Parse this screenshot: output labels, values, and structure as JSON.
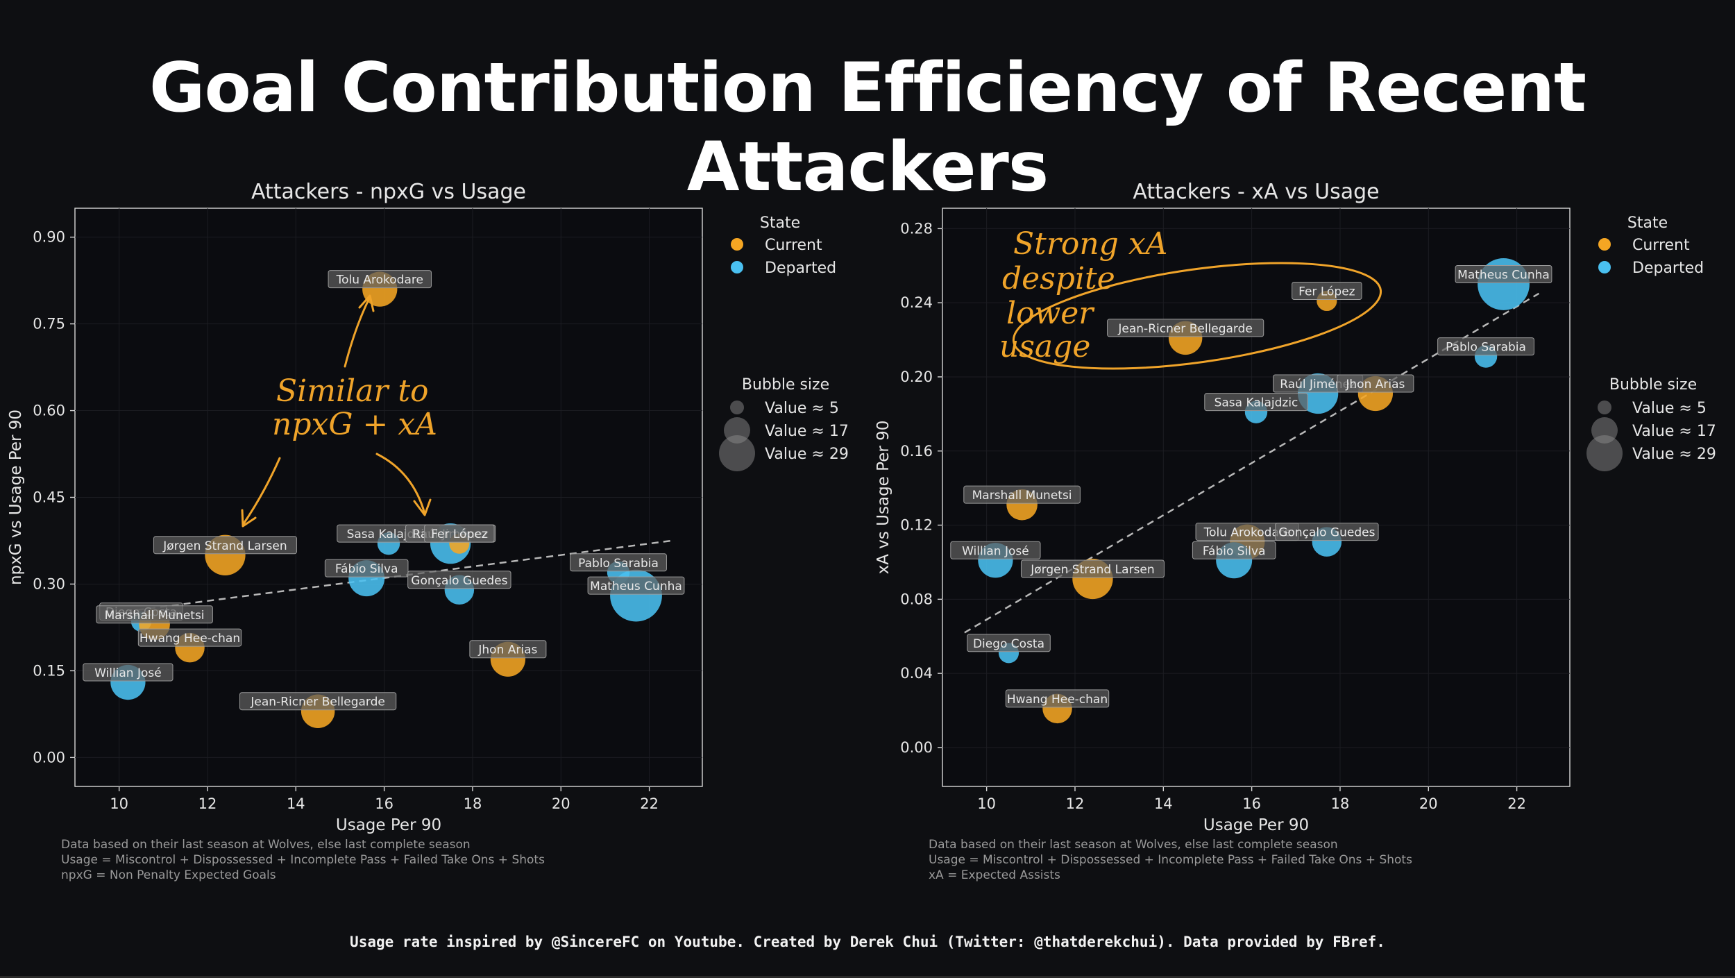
{
  "title": "Goal Contribution Efficiency of Recent Attackers",
  "footer": "Usage rate inspired by @SincereFC on Youtube. Created by Derek Chui (Twitter: @thatderekchui). Data provided by FBref.",
  "colors": {
    "current": "#f5a623",
    "departed": "#4ac0f0",
    "background": "#0e0f12",
    "annotation": "#f0a42a"
  },
  "legend": {
    "state_title": "State",
    "states": [
      {
        "key": "current",
        "label": "Current"
      },
      {
        "key": "departed",
        "label": "Departed"
      }
    ],
    "size_title": "Bubble size",
    "sizes": [
      {
        "value": 5,
        "label": "Value ≈ 5"
      },
      {
        "value": 17,
        "label": "Value ≈ 17"
      },
      {
        "value": 29,
        "label": "Value ≈ 29"
      }
    ]
  },
  "annotations": {
    "left": [
      "Similar to",
      "npxG + xA"
    ],
    "right": [
      "Strong xA",
      "despite",
      "lower",
      "usage"
    ]
  },
  "chart_data": [
    {
      "type": "scatter",
      "title": "Attackers - npxG vs Usage",
      "xlabel": "Usage Per 90",
      "ylabel": "npxG vs Usage Per 90",
      "xlim": [
        9,
        23.2
      ],
      "ylim": [
        -0.05,
        0.95
      ],
      "xticks": [
        "10",
        "12",
        "14",
        "16",
        "18",
        "20",
        "22"
      ],
      "yticks": [
        "0.00",
        "0.15",
        "0.30",
        "0.45",
        "0.60",
        "0.75",
        "0.90"
      ],
      "trendline": {
        "x": [
          10.4,
          22.5
        ],
        "y": [
          0.255,
          0.375
        ],
        "style": "dashed"
      },
      "notes": [
        "Data based on their last season at Wolves, else last complete season",
        "Usage = Miscontrol + Dispossessed + Incomplete Pass + Failed Take Ons + Shots",
        "npxG = Non Penalty Expected Goals"
      ],
      "points": [
        {
          "name": "Tolu Arokodare",
          "x": 15.9,
          "y": 0.81,
          "state": "current",
          "size": 12
        },
        {
          "name": "Jørgen Strand Larsen",
          "x": 12.4,
          "y": 0.35,
          "state": "current",
          "size": 17
        },
        {
          "name": "Sasa Kalajdzic",
          "x": 16.1,
          "y": 0.37,
          "state": "departed",
          "size": 4
        },
        {
          "name": "Raúl Jiménez",
          "x": 17.5,
          "y": 0.37,
          "state": "departed",
          "size": 17
        },
        {
          "name": "Fer López",
          "x": 17.7,
          "y": 0.37,
          "state": "current",
          "size": 3
        },
        {
          "name": "Fábio Silva",
          "x": 15.6,
          "y": 0.31,
          "state": "departed",
          "size": 13
        },
        {
          "name": "Gonçalo Guedes",
          "x": 17.7,
          "y": 0.29,
          "state": "departed",
          "size": 8
        },
        {
          "name": "Pablo Sarabia",
          "x": 21.3,
          "y": 0.32,
          "state": "departed",
          "size": 4
        },
        {
          "name": "Matheus Cunha",
          "x": 21.7,
          "y": 0.28,
          "state": "departed",
          "size": 30
        },
        {
          "name": "Diego Costa",
          "x": 10.5,
          "y": 0.235,
          "state": "departed",
          "size": 3
        },
        {
          "name": "Marshall Munetsi",
          "x": 10.8,
          "y": 0.23,
          "state": "current",
          "size": 9
        },
        {
          "name": "Hwang Hee-chan",
          "x": 11.6,
          "y": 0.19,
          "state": "current",
          "size": 8
        },
        {
          "name": "Willian José",
          "x": 10.2,
          "y": 0.13,
          "state": "departed",
          "size": 12
        },
        {
          "name": "Jhon Arias",
          "x": 18.8,
          "y": 0.17,
          "state": "current",
          "size": 12
        },
        {
          "name": "Jean-Ricner Bellegarde",
          "x": 14.5,
          "y": 0.08,
          "state": "current",
          "size": 11
        }
      ]
    },
    {
      "type": "scatter",
      "title": "Attackers - xA vs Usage",
      "xlabel": "Usage Per 90",
      "ylabel": "xA vs Usage Per 90",
      "xlim": [
        9,
        23.2
      ],
      "ylim": [
        -0.021,
        0.291
      ],
      "xticks": [
        "10",
        "12",
        "14",
        "16",
        "18",
        "20",
        "22"
      ],
      "yticks": [
        "0.00",
        "0.04",
        "0.08",
        "0.12",
        "0.16",
        "0.20",
        "0.24",
        "0.28"
      ],
      "trendline": {
        "x": [
          9.5,
          22.5
        ],
        "y": [
          0.062,
          0.245
        ],
        "style": "dashed"
      },
      "notes": [
        "Data based on their last season at Wolves, else last complete season",
        "Usage = Miscontrol + Dispossessed + Incomplete Pass + Failed Take Ons + Shots",
        "xA = Expected Assists"
      ],
      "points": [
        {
          "name": "Matheus Cunha",
          "x": 21.7,
          "y": 0.25,
          "state": "departed",
          "size": 30
        },
        {
          "name": "Fer López",
          "x": 17.7,
          "y": 0.241,
          "state": "current",
          "size": 3
        },
        {
          "name": "Jean-Ricner Bellegarde",
          "x": 14.5,
          "y": 0.221,
          "state": "current",
          "size": 11
        },
        {
          "name": "Pablo Sarabia",
          "x": 21.3,
          "y": 0.211,
          "state": "departed",
          "size": 4
        },
        {
          "name": "Raúl Jiménez",
          "x": 17.5,
          "y": 0.191,
          "state": "departed",
          "size": 17
        },
        {
          "name": "Jhon Arias",
          "x": 18.8,
          "y": 0.191,
          "state": "current",
          "size": 12
        },
        {
          "name": "Sasa Kalajdzic",
          "x": 16.1,
          "y": 0.181,
          "state": "departed",
          "size": 4
        },
        {
          "name": "Marshall Munetsi",
          "x": 10.8,
          "y": 0.131,
          "state": "current",
          "size": 9
        },
        {
          "name": "Tolu Arokodare",
          "x": 15.9,
          "y": 0.111,
          "state": "current",
          "size": 12
        },
        {
          "name": "Gonçalo Guedes",
          "x": 17.7,
          "y": 0.111,
          "state": "departed",
          "size": 8
        },
        {
          "name": "Willian José",
          "x": 10.2,
          "y": 0.101,
          "state": "departed",
          "size": 12
        },
        {
          "name": "Fábio Silva",
          "x": 15.6,
          "y": 0.101,
          "state": "departed",
          "size": 13
        },
        {
          "name": "Jørgen Strand Larsen",
          "x": 12.4,
          "y": 0.091,
          "state": "current",
          "size": 17
        },
        {
          "name": "Diego Costa",
          "x": 10.5,
          "y": 0.051,
          "state": "departed",
          "size": 3
        },
        {
          "name": "Hwang Hee-chan",
          "x": 11.6,
          "y": 0.021,
          "state": "current",
          "size": 8
        }
      ]
    }
  ]
}
